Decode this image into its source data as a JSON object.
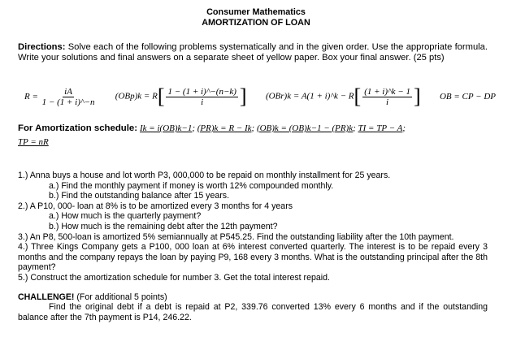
{
  "header": {
    "title": "Consumer Mathematics",
    "subtitle": "AMORTIZATION OF LOAN"
  },
  "directions": {
    "label": "Directions:",
    "text": " Solve each of the following problems systematically and in the given order. Use the appropriate formula. Write your solutions and final answers on a separate sheet of yellow paper. Box your final answer. (25 pts)"
  },
  "formulas": {
    "f1_lhs": "R =",
    "f1_num": "iA",
    "f1_den": "1 − (1 + i)^−n",
    "f2_lhs": "(OBp)k = R",
    "f2_num": "1 − (1 + i)^−(n−k)",
    "f2_den": "i",
    "f3_lhs": "(OBr)k = A(1 + i)^k − R",
    "f3_num": "(1 + i)^k − 1",
    "f3_den": "i",
    "f4": "OB = CP − DP"
  },
  "schedule": {
    "label": "For Amortization schedule:",
    "f1": "Ik = i(OB)k−1",
    "f2": "(PR)k = R − Ik",
    "f3": "(OB)k = (OB)k−1 − (PR)k",
    "f4": "TI = TP − A",
    "f5": "TP = nR",
    "sep": ";"
  },
  "problems": [
    {
      "num": "1.)",
      "text": " Anna buys a house and lot worth P3, 000,000 to be repaid on monthly installment for 25 years."
    },
    {
      "num": "a.)",
      "text": " Find the monthly payment if money is worth 12% compounded monthly."
    },
    {
      "num": "b.)",
      "text": " Find the outstanding balance after 15 years."
    },
    {
      "num": "2.)",
      "text": " A P10, 000- loan at 8% is to be amortized every 3 months for 4 years"
    },
    {
      "num": "a.)",
      "text": " How much is the quarterly payment?"
    },
    {
      "num": "b.)",
      "text": " How much is the remaining debt after the 12th payment?"
    },
    {
      "num": "3.)",
      "text": " An P8, 500-loan is amortized 5% semiannually at P545.25.  Find the outstanding liability after the 10th payment."
    },
    {
      "num": "4.)",
      "text": " Three Kings Company gets a P100, 000 loan at 6% interest converted quarterly.  The interest is to be repaid every 3 months and the company repays the loan by paying P9, 168 every 3 months.  What is the outstanding principal after the 8th payment?"
    },
    {
      "num": "5.)",
      "text": " Construct the amortization schedule for number 3.  Get the total interest repaid."
    }
  ],
  "challenge": {
    "label": "CHALLENGE!",
    "note": " (For additional 5 points)",
    "text": "Find the original debt if a debt is repaid at P2, 339.76 converted 13% every 6 months and if the outstanding balance after the 7th payment is P14, 246.22."
  }
}
